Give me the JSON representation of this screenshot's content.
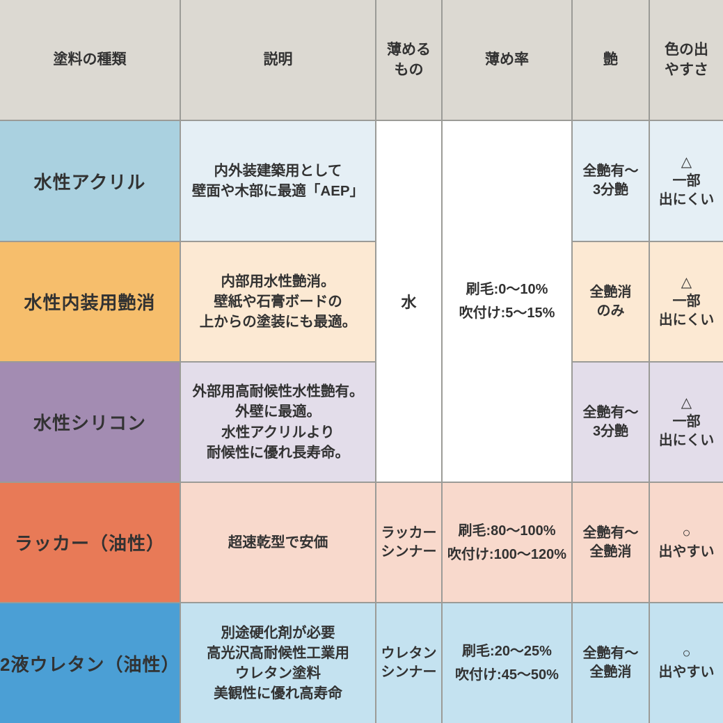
{
  "colors": {
    "header_bg": "#dcd9d2",
    "border": "#9b9b97",
    "white": "#ffffff",
    "text": "#323232",
    "rows": [
      {
        "label": "#aad1e0",
        "tint": "#e5eff5"
      },
      {
        "label": "#f6be6c",
        "tint": "#fce9d3"
      },
      {
        "label": "#a38cb2",
        "tint": "#e3ddea"
      },
      {
        "label": "#e87a57",
        "tint": "#f8d9cc"
      },
      {
        "label": "#4b9fd5",
        "tint": "#c4e2f0"
      }
    ]
  },
  "chart_data": {
    "type": "table",
    "columns": [
      "塗料の種類",
      "説明",
      "薄める\nもの",
      "薄め率",
      "艶",
      "色の出\nやすさ"
    ],
    "rows": [
      {
        "type": "水性アクリル",
        "description": "内外装建築用として\n壁面や木部に最適「AEP」",
        "thinner": "水",
        "ratio": "刷毛:0〜10%\n吹付け:5〜15%",
        "gloss": "全艶有〜\n3分艶",
        "color_ease": "△\n一部\n出にくい"
      },
      {
        "type": "水性内装用艶消",
        "description": "内部用水性艶消。\n壁紙や石膏ボードの\n上からの塗装にも最適。",
        "thinner": "水",
        "ratio": "刷毛:0〜10%\n吹付け:5〜15%",
        "gloss": "全艶消\nのみ",
        "color_ease": "△\n一部\n出にくい"
      },
      {
        "type": "水性シリコン",
        "description": "外部用高耐候性水性艶有。\n外壁に最適。\n水性アクリルより\n耐候性に優れ長寿命。",
        "thinner": "水",
        "ratio": "刷毛:0〜10%\n吹付け:5〜15%",
        "gloss": "全艶有〜\n3分艶",
        "color_ease": "△\n一部\n出にくい"
      },
      {
        "type": "ラッカー（油性）",
        "description": "超速乾型で安価",
        "thinner": "ラッカー\nシンナー",
        "ratio": "刷毛:80〜100%\n吹付け:100〜120%",
        "gloss": "全艶有〜\n全艶消",
        "color_ease": "○\n出やすい"
      },
      {
        "type": "2液ウレタン（油性）",
        "description": "別途硬化剤が必要\n高光沢高耐候性工業用\nウレタン塗料\n美観性に優れ高寿命",
        "thinner": "ウレタン\nシンナー",
        "ratio": "刷毛:20〜25%\n吹付け:45〜50%",
        "gloss": "全艶有〜\n全艶消",
        "color_ease": "○\n出やすい"
      }
    ]
  }
}
